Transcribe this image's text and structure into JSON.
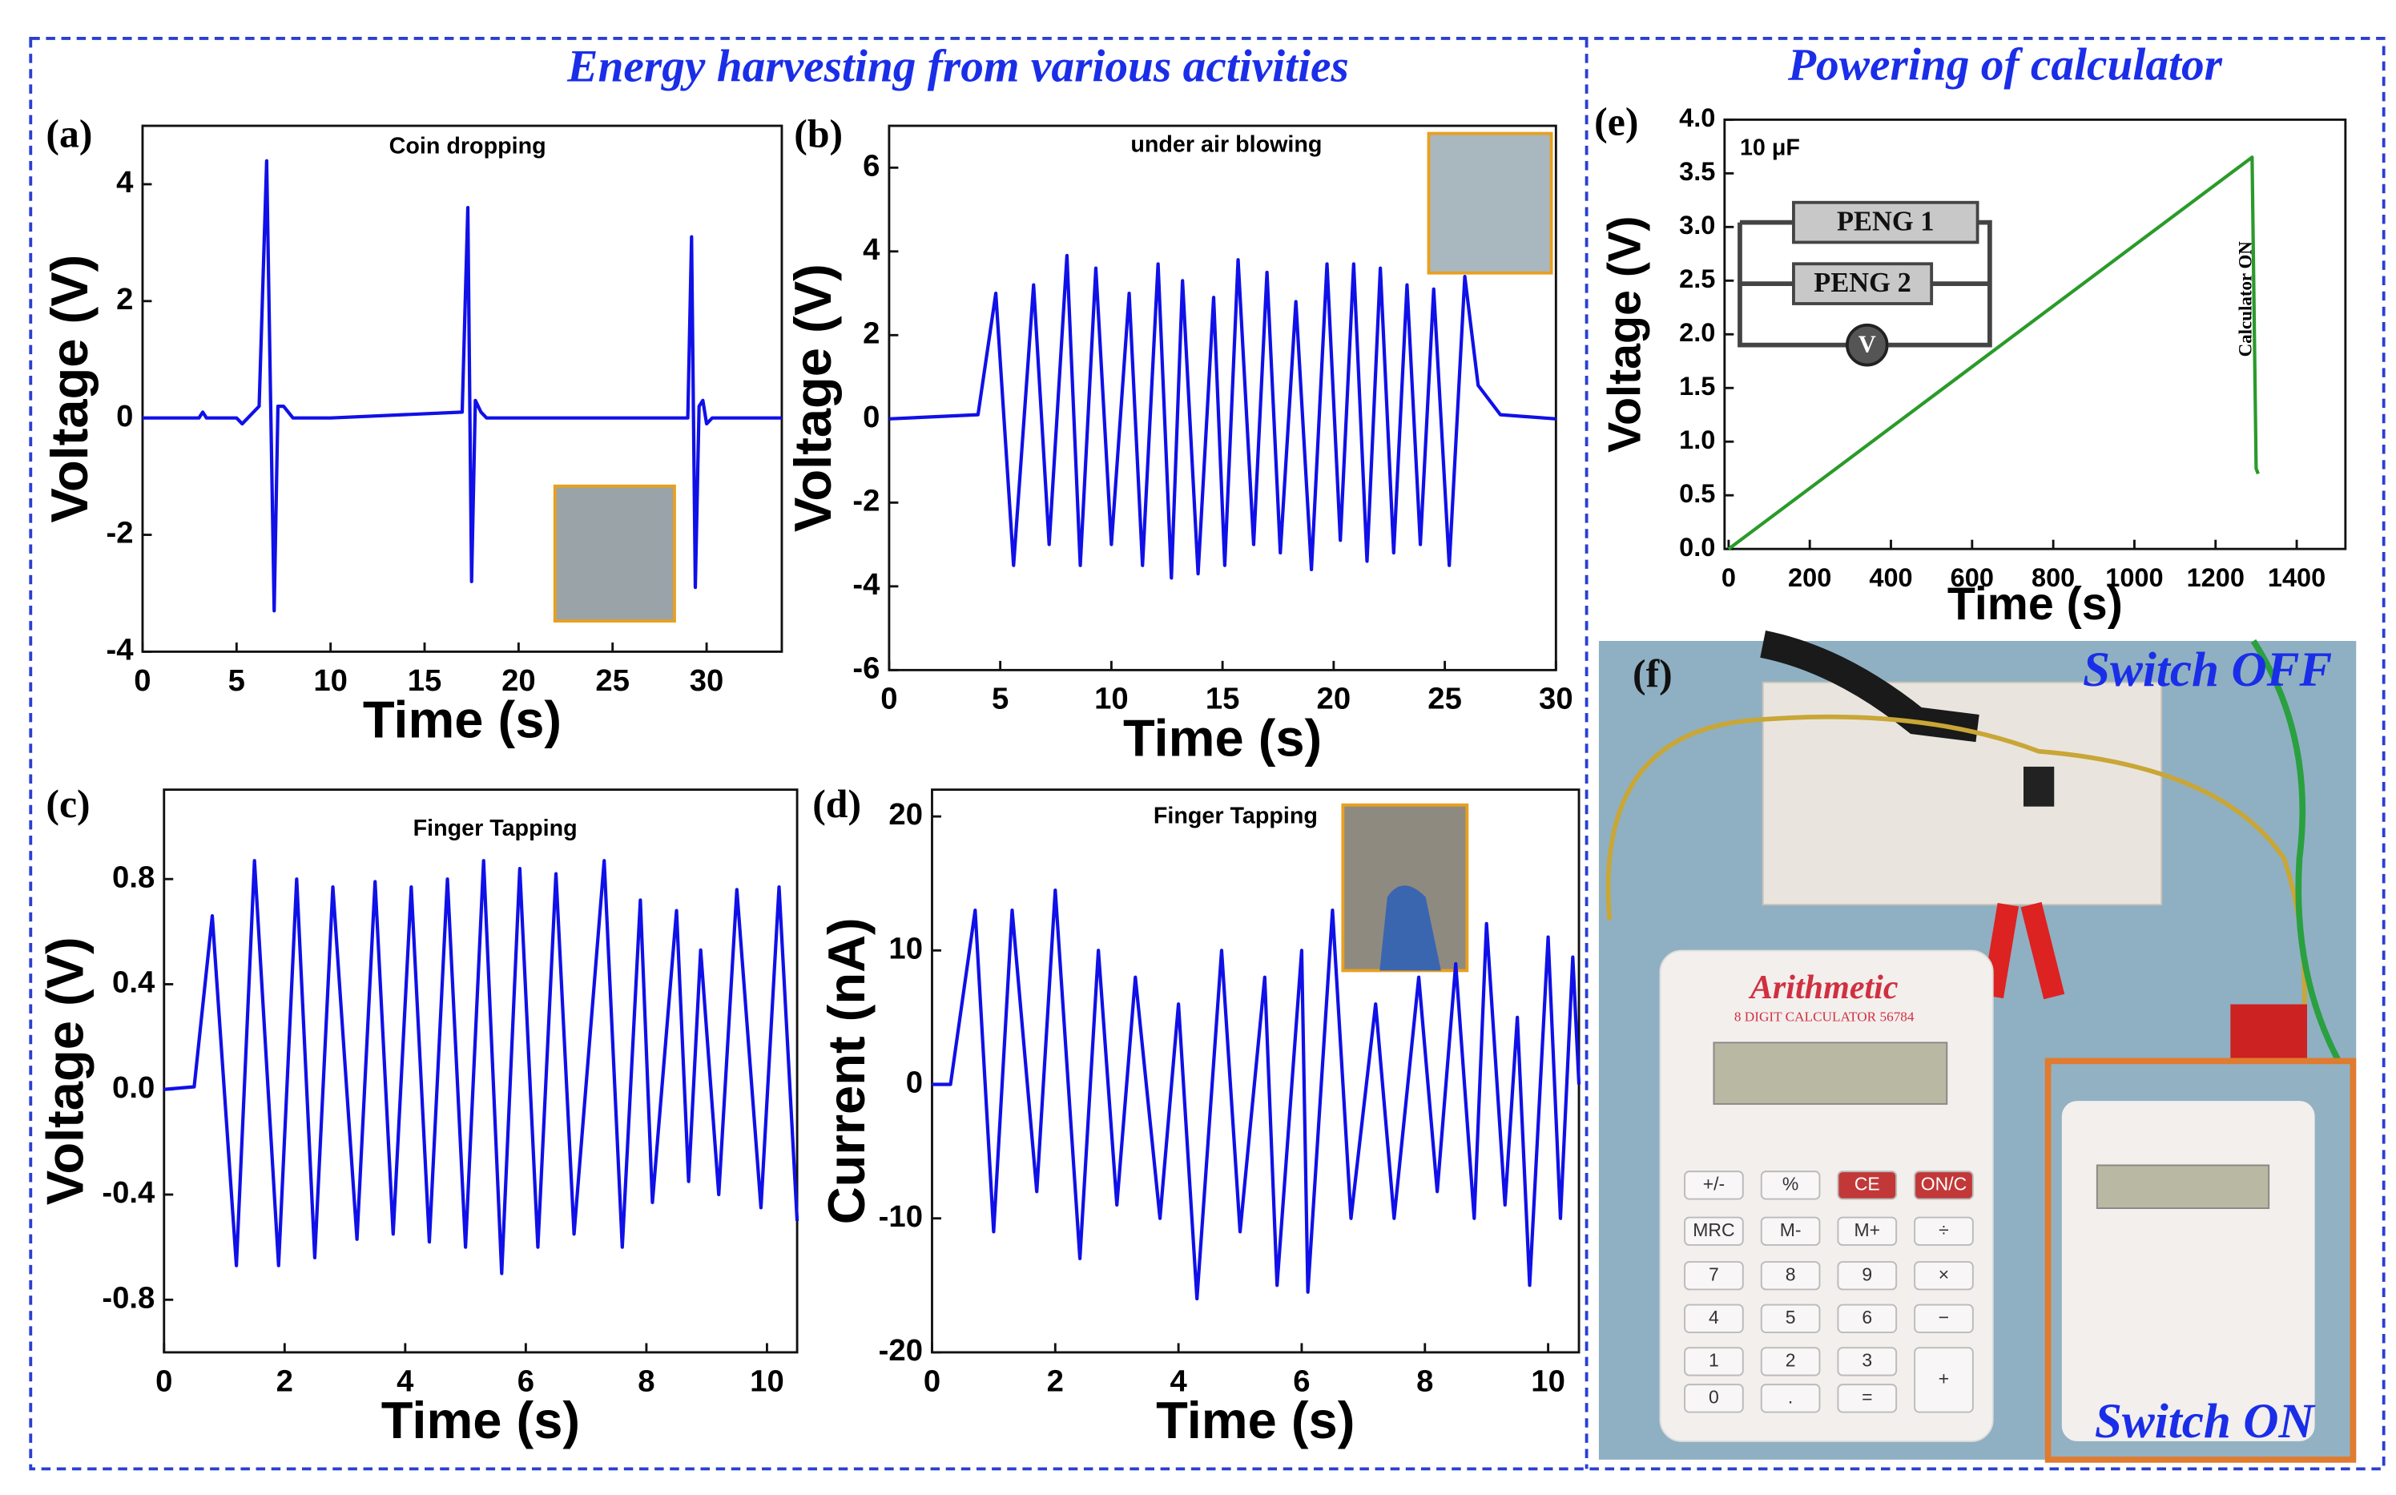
{
  "headings": [
    "Energy harvesting from various activities",
    "Powering of calculator"
  ],
  "chart_data": [
    {
      "type": "line",
      "panel": "(a)",
      "title": "Coin dropping",
      "xlabel": "Time (s)",
      "ylabel": "Voltage (V)",
      "x": [
        0,
        3,
        3.2,
        3.4,
        5,
        5.3,
        6.2,
        6.6,
        6.8,
        7.0,
        7.2,
        7.5,
        8,
        10,
        17,
        17.3,
        17.5,
        17.7,
        18,
        18.3,
        20,
        29,
        29.2,
        29.4,
        29.6,
        29.8,
        30,
        30.3,
        34
      ],
      "series": [
        {
          "color": "#1010e8",
          "values": [
            0,
            0,
            0.1,
            0,
            0,
            -0.1,
            0.2,
            4.4,
            0.5,
            -3.3,
            0.2,
            0.2,
            0,
            0,
            0.1,
            3.6,
            -2.8,
            0.3,
            0.1,
            0,
            0,
            0,
            3.1,
            -2.9,
            0.2,
            0.3,
            -0.1,
            0,
            0
          ]
        }
      ],
      "xlim": [
        0,
        34
      ],
      "ylim": [
        -4,
        5
      ],
      "xticks": [
        0,
        5,
        10,
        15,
        20,
        25,
        30
      ],
      "yticks": [
        -4,
        -2,
        0,
        2,
        4
      ]
    },
    {
      "type": "line",
      "panel": "(b)",
      "title": "under air blowing",
      "xlabel": "Time (s)",
      "ylabel": "Voltage (V)",
      "x": [
        0,
        4,
        4.8,
        5.6,
        6.5,
        7.2,
        8.0,
        8.6,
        9.3,
        10.0,
        10.8,
        11.4,
        12.1,
        12.7,
        13.2,
        13.9,
        14.6,
        15.1,
        15.7,
        16.4,
        17.0,
        17.6,
        18.3,
        19.0,
        19.7,
        20.3,
        20.9,
        21.5,
        22.1,
        22.7,
        23.3,
        23.9,
        24.5,
        25.2,
        25.9,
        26.5,
        27.5,
        30
      ],
      "series": [
        {
          "color": "#1010e8",
          "values": [
            0,
            0.1,
            3.0,
            -3.5,
            3.2,
            -3.0,
            3.9,
            -3.5,
            3.6,
            -3.0,
            3.0,
            -3.5,
            3.7,
            -3.8,
            3.3,
            -3.7,
            2.9,
            -3.5,
            3.8,
            -3.0,
            3.5,
            -3.2,
            2.8,
            -3.6,
            3.7,
            -2.9,
            3.7,
            -3.4,
            3.6,
            -3.2,
            3.2,
            -3.0,
            3.1,
            -3.5,
            3.4,
            0.8,
            0.1,
            0
          ]
        }
      ],
      "xlim": [
        0,
        30
      ],
      "ylim": [
        -6,
        7
      ],
      "xticks": [
        0,
        5,
        10,
        15,
        20,
        25,
        30
      ],
      "yticks": [
        -6,
        -4,
        -2,
        0,
        2,
        4,
        6
      ]
    },
    {
      "type": "line",
      "panel": "(c)",
      "title": "Finger Tapping",
      "xlabel": "Time (s)",
      "ylabel": "Voltage (V)",
      "x": [
        0,
        0.5,
        0.8,
        1.2,
        1.5,
        1.9,
        2.2,
        2.5,
        2.8,
        3.2,
        3.5,
        3.8,
        4.1,
        4.4,
        4.7,
        5.0,
        5.3,
        5.6,
        5.9,
        6.2,
        6.5,
        6.8,
        7.3,
        7.6,
        7.9,
        8.1,
        8.5,
        8.7,
        8.9,
        9.2,
        9.5,
        9.9,
        10.2,
        10.5
      ],
      "series": [
        {
          "color": "#1010e8",
          "values": [
            0,
            0.01,
            0.66,
            -0.67,
            0.87,
            -0.67,
            0.8,
            -0.64,
            0.77,
            -0.57,
            0.79,
            -0.55,
            0.77,
            -0.58,
            0.8,
            -0.6,
            0.87,
            -0.7,
            0.84,
            -0.6,
            0.82,
            -0.55,
            0.87,
            -0.6,
            0.72,
            -0.43,
            0.68,
            -0.35,
            0.53,
            -0.4,
            0.76,
            -0.45,
            0.77,
            -0.5
          ]
        }
      ],
      "xlim": [
        0,
        10.5
      ],
      "ylim": [
        -1.0,
        1.14
      ],
      "xticks": [
        0,
        2,
        4,
        6,
        8,
        10
      ],
      "yticks": [
        0.8,
        0.4,
        {
          "value": 0,
          "label": "0.0"
        },
        -0.4,
        -0.8
      ]
    },
    {
      "type": "line",
      "panel": "(d)",
      "title": "Finger Tapping",
      "xlabel": "Time (s)",
      "ylabel": "Current (nA)",
      "x": [
        0,
        0.3,
        0.7,
        1.0,
        1.3,
        1.7,
        2.0,
        2.4,
        2.7,
        3.0,
        3.3,
        3.7,
        4.0,
        4.3,
        4.7,
        5.0,
        5.4,
        5.6,
        6.0,
        6.1,
        6.5,
        6.8,
        7.2,
        7.5,
        7.9,
        8.2,
        8.5,
        8.8,
        9.0,
        9.3,
        9.5,
        9.7,
        10.0,
        10.2,
        10.4,
        10.5
      ],
      "series": [
        {
          "color": "#1010e8",
          "values": [
            0,
            0,
            13,
            -11,
            13,
            -8,
            14.5,
            -13,
            10,
            -9,
            8,
            -10,
            6,
            -16,
            10,
            -11,
            8,
            -15,
            10,
            -15.5,
            13,
            -10,
            6,
            -10,
            8,
            -8,
            9,
            -10,
            12,
            -9,
            5,
            -15,
            11,
            -10,
            9.5,
            0
          ]
        }
      ],
      "xlim": [
        0,
        10.5
      ],
      "ylim": [
        -20,
        22
      ],
      "xticks": [
        0,
        2,
        4,
        6,
        8,
        10
      ],
      "yticks": [
        -20,
        -10,
        0,
        10,
        20
      ]
    },
    {
      "type": "line",
      "panel": "(e)",
      "title": "10 μF",
      "xlabel": "Time (s)",
      "ylabel": "Voltage (V)",
      "x": [
        0,
        1290,
        1300,
        1305
      ],
      "series": [
        {
          "color": "#2a9a2a",
          "values": [
            0,
            3.65,
            0.75,
            0.7
          ]
        }
      ],
      "xlim": [
        -10,
        1520
      ],
      "ylim": [
        0,
        4
      ],
      "xticks": [
        0,
        200,
        400,
        600,
        800,
        1000,
        1200,
        1400
      ],
      "yticks": [
        {
          "value": 0,
          "label": "0.0"
        },
        0.5,
        {
          "value": 1,
          "label": "1.0"
        },
        1.5,
        {
          "value": 2,
          "label": "2.0"
        },
        2.5,
        {
          "value": 3,
          "label": "3.0"
        },
        3.5,
        {
          "value": 4,
          "label": "4.0"
        }
      ],
      "annotations": [
        "Calculator ON"
      ],
      "inset_labels": [
        "PENG 1",
        "PENG 2",
        "V"
      ]
    }
  ],
  "panel_f": {
    "label": "(f)",
    "switch_off": "Switch OFF",
    "switch_on": "Switch ON",
    "calculator": {
      "brand": "Arithmetic",
      "model": "8 DIGIT CALCULATOR 56784",
      "keys": [
        "+/-",
        "%",
        "CE",
        "ON/C",
        "MRC",
        "M-",
        "M+",
        "÷",
        "7",
        "8",
        "9",
        "×",
        "4",
        "5",
        "6",
        "−",
        "1",
        "2",
        "3",
        "+",
        "0",
        ".",
        "="
      ]
    }
  }
}
